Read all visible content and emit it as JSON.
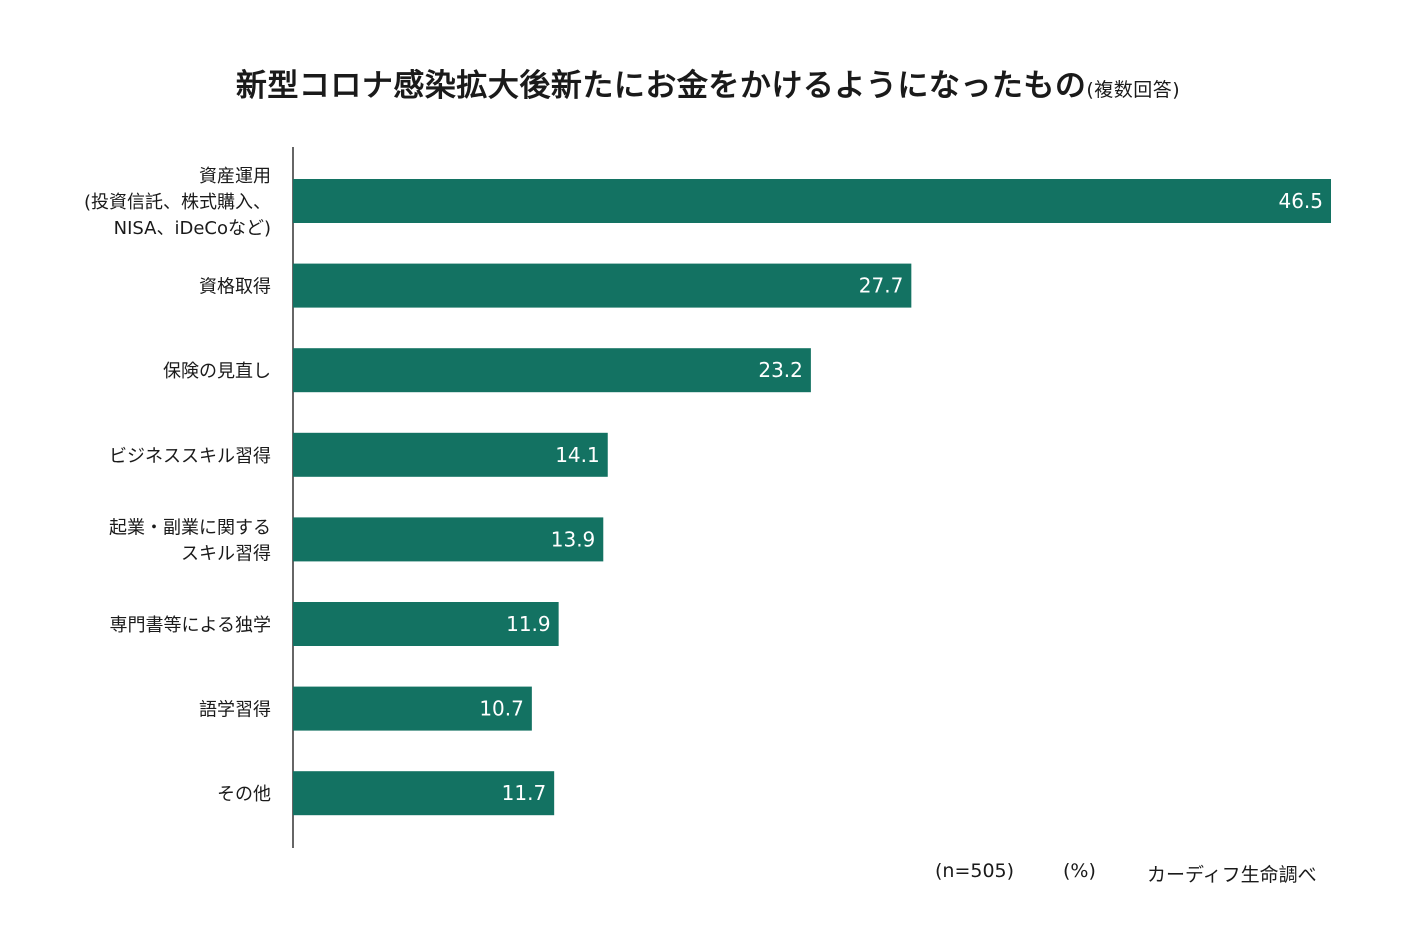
{
  "chart_data": {
    "type": "bar",
    "orientation": "horizontal",
    "title": "新型コロナ感染拡大後新たにお金をかけるようになったもの",
    "subtitle": "(複数回答)",
    "categories": [
      [
        "資産運用",
        "(投資信託、株式購入、",
        "NISA、iDeCoなど)"
      ],
      [
        "資格取得"
      ],
      [
        "保険の見直し"
      ],
      [
        "ビジネススキル習得"
      ],
      [
        "起業・副業に関する",
        "スキル習得"
      ],
      [
        "専門書等による独学"
      ],
      [
        "語学習得"
      ],
      [
        "その他"
      ]
    ],
    "values": [
      46.5,
      27.7,
      23.2,
      14.1,
      13.9,
      11.9,
      10.7,
      11.7
    ],
    "value_labels": [
      "46.5",
      "27.7",
      "23.2",
      "14.1",
      "13.9",
      "11.9",
      "10.7",
      "11.7"
    ],
    "xlim": [
      0,
      46.5
    ],
    "grid": false,
    "bar_color": "#137262",
    "unit": "(%)"
  },
  "footer": {
    "sample": "(n=505)",
    "unit": "(%)",
    "source": "カーディフ生命調べ"
  }
}
